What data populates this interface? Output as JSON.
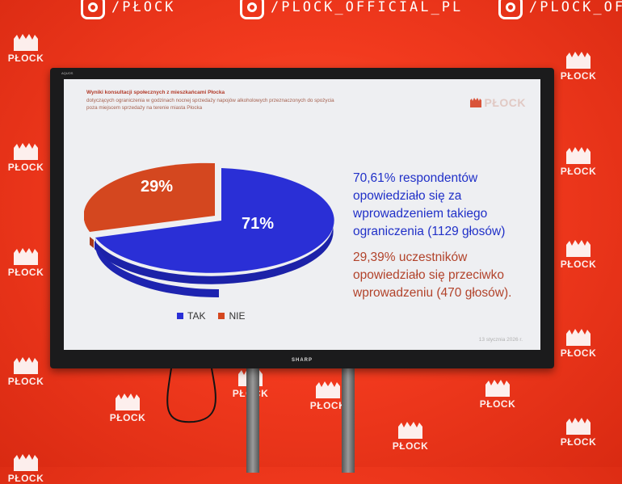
{
  "banner": {
    "social_instagram": "/PLOCK_OFFICIAL_PL",
    "social_tiktok": "/PLOCK_OFFI",
    "social_top_left": "/PŁOCK",
    "logo_text": "PŁOCK"
  },
  "tv": {
    "brand_top": "AQUOS",
    "brand": "SHARP"
  },
  "slide": {
    "title": "Wyniki konsultacji społecznych z mieszkańcami Płocka",
    "subtitle_line1": "dotyczących ograniczenia w godzinach nocnej sprzedaży napojów alkoholowych przeznaczonych do spożycia",
    "subtitle_line2": "poza miejscem sprzedaży na terenie miasta Płocka",
    "logo_text": "PŁOCK",
    "pie_label_yes": "71%",
    "pie_label_no": "29%",
    "legend_yes": "TAK",
    "legend_no": "NIE",
    "stat_yes": [
      "70,61% respondentów",
      "opowiedziało się za",
      "wprowadzeniem takiego",
      "ograniczenia (1129 głosów)"
    ],
    "stat_no": [
      "29,39% uczestników",
      "opowiedziało się przeciwko",
      "wprowadzeniu (470 głosów)."
    ],
    "date": "13 stycznia 2026 r."
  },
  "chart_data": {
    "type": "pie",
    "categories": [
      "TAK",
      "NIE"
    ],
    "values": [
      71,
      29
    ],
    "colors": {
      "TAK": "#2a2fd6",
      "NIE": "#d4471f"
    }
  }
}
